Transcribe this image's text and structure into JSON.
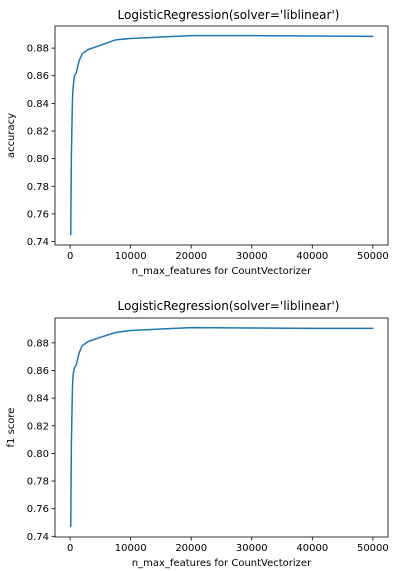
{
  "chart_data": [
    {
      "type": "line",
      "title": "LogisticRegression(solver='liblinear')",
      "xlabel": "n_max_features for CountVectorizer",
      "ylabel": "accuracy",
      "xlim": [
        -2500,
        52500
      ],
      "ylim": [
        0.7375,
        0.896
      ],
      "xticks": [
        0,
        10000,
        20000,
        30000,
        40000,
        50000
      ],
      "xtick_labels": [
        "0",
        "10000",
        "20000",
        "30000",
        "40000",
        "50000"
      ],
      "yticks": [
        0.74,
        0.76,
        0.78,
        0.8,
        0.82,
        0.84,
        0.86,
        0.88
      ],
      "ytick_labels": [
        "0.74",
        "0.76",
        "0.78",
        "0.80",
        "0.82",
        "0.84",
        "0.86",
        "0.88"
      ],
      "grid": false,
      "series": [
        {
          "color": "#1f77b4",
          "x": [
            100,
            200,
            300,
            400,
            500,
            700,
            1000,
            1500,
            2000,
            3000,
            5000,
            7500,
            10000,
            15000,
            20000,
            30000,
            40000,
            50000
          ],
          "y": [
            0.745,
            0.8,
            0.825,
            0.845,
            0.852,
            0.86,
            0.862,
            0.871,
            0.876,
            0.879,
            0.882,
            0.886,
            0.887,
            0.888,
            0.889,
            0.889,
            0.8888,
            0.8885
          ]
        }
      ]
    },
    {
      "type": "line",
      "title": "LogisticRegression(solver='liblinear')",
      "xlabel": "n_max_features for CountVectorizer",
      "ylabel": "f1 score",
      "xlim": [
        -2500,
        52500
      ],
      "ylim": [
        0.7395,
        0.898
      ],
      "xticks": [
        0,
        10000,
        20000,
        30000,
        40000,
        50000
      ],
      "xtick_labels": [
        "0",
        "10000",
        "20000",
        "30000",
        "40000",
        "50000"
      ],
      "yticks": [
        0.74,
        0.76,
        0.78,
        0.8,
        0.82,
        0.84,
        0.86,
        0.88
      ],
      "ytick_labels": [
        "0.74",
        "0.76",
        "0.78",
        "0.80",
        "0.82",
        "0.84",
        "0.86",
        "0.88"
      ],
      "grid": false,
      "series": [
        {
          "color": "#1f77b4",
          "x": [
            100,
            200,
            300,
            400,
            500,
            700,
            1000,
            1500,
            2000,
            3000,
            5000,
            7500,
            10000,
            15000,
            20000,
            30000,
            40000,
            50000
          ],
          "y": [
            0.747,
            0.805,
            0.83,
            0.85,
            0.857,
            0.862,
            0.864,
            0.873,
            0.878,
            0.881,
            0.884,
            0.8875,
            0.889,
            0.89,
            0.891,
            0.8908,
            0.8905,
            0.8905
          ]
        }
      ]
    }
  ]
}
